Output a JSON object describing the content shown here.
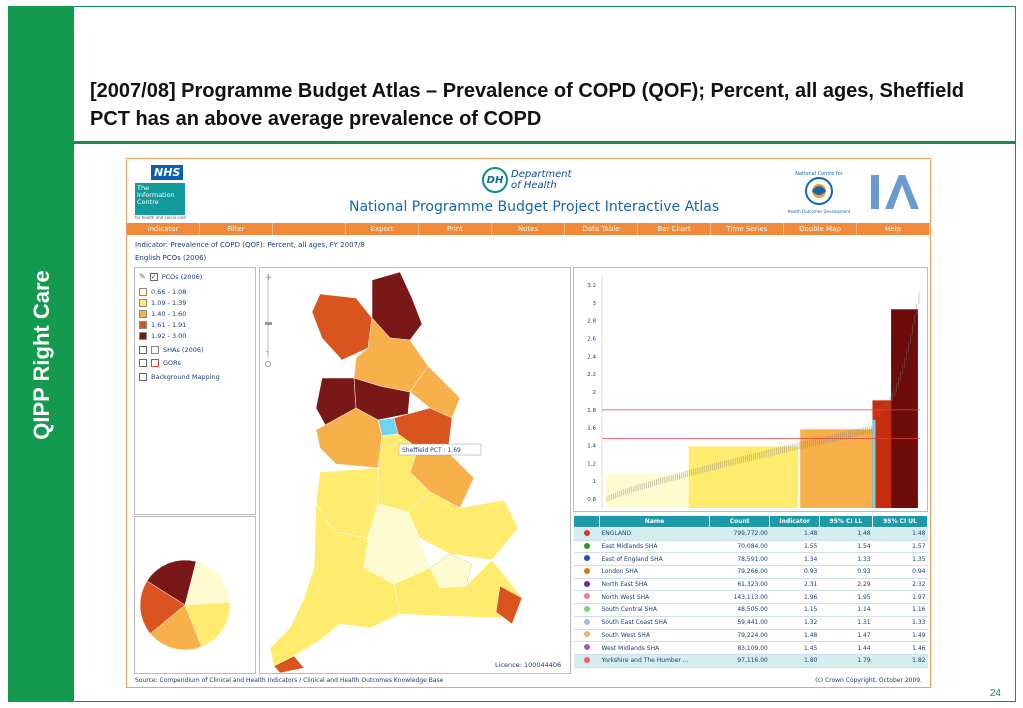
{
  "slide": {
    "side_label": "QIPP Right Care",
    "title": "[2007/08] Programme Budget Atlas –  Prevalence of COPD (QOF); Percent, all ages, Sheffield PCT has an above average prevalence of COPD",
    "page_number": "24"
  },
  "atlas": {
    "nhs_logo": "NHS",
    "ic_logo": "The Information Centre",
    "ic_sub": "for health and social care",
    "dh_mark": "DH",
    "dh_text_1": "Department",
    "dh_text_2": "of Health",
    "title": "National Programme Budget Project Interactive Atlas",
    "nchod_top": "National Centre for",
    "nchod_bottom": "Health Outcomes Development",
    "ia_logo": "IA",
    "nav": [
      "Indicator",
      "Filter",
      "",
      "Export",
      "Print",
      "Notes",
      "Data Table",
      "Bar Chart",
      "Time Series",
      "Double Map",
      "Help"
    ],
    "indicator_text": "Indicator: Prevalence of COPD (QOF): Percent, all ages, FY 2007/8",
    "geography_text": "English PCOs (2006)",
    "legend": {
      "pcos_label": "PCOs (2006)",
      "classes": [
        {
          "label": "0.66 - 1.08",
          "color": "#fffbd0"
        },
        {
          "label": "1.09 - 1.39",
          "color": "#ffec6e"
        },
        {
          "label": "1.40 - 1.60",
          "color": "#f7b04a"
        },
        {
          "label": "1.61 - 1.91",
          "color": "#d9541e"
        },
        {
          "label": "1.92 - 3.00",
          "color": "#7a1818"
        }
      ],
      "shas_label": "SHAs (2006)",
      "gors_label": "GORs",
      "background_label": "Background Mapping"
    },
    "map_tooltip": "Sheffield PCT : 1.69",
    "licence": "Licence: 100044406",
    "source": "Source: Compendium of Clinical and Health Indicators / Clinical and Health Outcomes Knowledge Base",
    "copyright": "(c) Crown Copyright, October 2009."
  },
  "chart_data": [
    {
      "type": "pie",
      "slices": [
        {
          "value": 20,
          "color": "#fffbd0"
        },
        {
          "value": 20,
          "color": "#ffec6e"
        },
        {
          "value": 20,
          "color": "#f7b04a"
        },
        {
          "value": 20,
          "color": "#d9541e"
        },
        {
          "value": 20,
          "color": "#7a1818"
        }
      ]
    },
    {
      "type": "bar",
      "description_of_axis": "",
      "y_ticks": [
        "0.8",
        "1",
        "1.2",
        "1.4",
        "1.6",
        "1.8",
        "2",
        "2.2",
        "2.4",
        "2.6",
        "2.8",
        "3",
        "3.2"
      ],
      "ylim": [
        0.7,
        3.3
      ],
      "reference_lines": [
        1.48,
        1.8
      ],
      "bands": [
        {
          "from": 0.66,
          "to": 1.08,
          "color": "#fffbd0"
        },
        {
          "from": 1.09,
          "to": 1.39,
          "color": "#ffec6e"
        },
        {
          "from": 1.4,
          "to": 1.6,
          "color": "#f7b04a"
        },
        {
          "from": 1.61,
          "to": 1.91,
          "color": "#c52d0e"
        },
        {
          "from": 1.92,
          "to": 3.0,
          "color": "#6e0b0b"
        }
      ],
      "highlight_value": 1.69,
      "value_range": [
        0.8,
        3.05
      ]
    },
    {
      "type": "table",
      "columns": [
        "",
        "Name",
        "Count",
        "Indicator",
        "95% CI LL",
        "95% CI UL"
      ],
      "rows": [
        {
          "color": "#e03030",
          "name": "ENGLAND",
          "count": "799,772.00",
          "indicator": "1.48",
          "ll": "1.48",
          "ul": "1.48"
        },
        {
          "color": "#2a9a2a",
          "name": "East Midlands SHA",
          "count": "70,084.00",
          "indicator": "1.55",
          "ll": "1.54",
          "ul": "1.57"
        },
        {
          "color": "#2050c0",
          "name": "East of England SHA",
          "count": "78,591.00",
          "indicator": "1.34",
          "ll": "1.33",
          "ul": "1.35"
        },
        {
          "color": "#e07020",
          "name": "London SHA",
          "count": "79,266.00",
          "indicator": "0.93",
          "ll": "0.93",
          "ul": "0.94"
        },
        {
          "color": "#6a2a9a",
          "name": "North East SHA",
          "count": "61,323.00",
          "indicator": "2.31",
          "ll": "2.29",
          "ul": "2.32"
        },
        {
          "color": "#f08080",
          "name": "North West SHA",
          "count": "143,113.00",
          "indicator": "1.96",
          "ll": "1.95",
          "ul": "1.97"
        },
        {
          "color": "#80d080",
          "name": "South Central SHA",
          "count": "48,505.00",
          "indicator": "1.15",
          "ll": "1.14",
          "ul": "1.16"
        },
        {
          "color": "#a0c0e0",
          "name": "South East Coast SHA",
          "count": "59,441.00",
          "indicator": "1.32",
          "ll": "1.31",
          "ul": "1.33"
        },
        {
          "color": "#f0b070",
          "name": "South West SHA",
          "count": "79,224.00",
          "indicator": "1.48",
          "ll": "1.47",
          "ul": "1.49"
        },
        {
          "color": "#9a60c0",
          "name": "West Midlands SHA",
          "count": "83,109.00",
          "indicator": "1.45",
          "ll": "1.44",
          "ul": "1.46"
        },
        {
          "color": "#f06060",
          "name": "Yorkshire and The Humber ...",
          "count": "97,116.00",
          "indicator": "1.80",
          "ll": "1.79",
          "ul": "1.82"
        }
      ]
    }
  ]
}
